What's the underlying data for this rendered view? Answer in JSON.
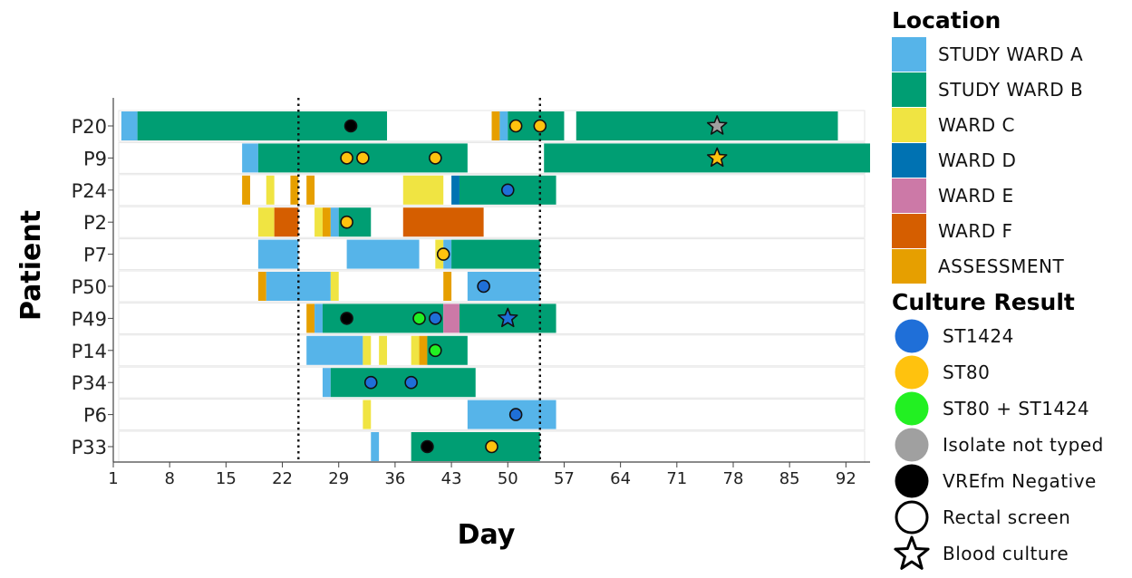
{
  "chart_data": {
    "type": "timeline",
    "xlabel": "Day",
    "ylabel": "Patient",
    "xlim": [
      1,
      95
    ],
    "xticks": [
      1,
      8,
      15,
      22,
      29,
      36,
      43,
      50,
      57,
      64,
      71,
      78,
      85,
      92
    ],
    "vlines": [
      24,
      54
    ],
    "patients": [
      "P20",
      "P9",
      "P24",
      "P2",
      "P7",
      "P50",
      "P49",
      "P14",
      "P34",
      "P6",
      "P33"
    ],
    "location_legend_title": "Location",
    "locations": [
      {
        "name": "STUDY WARD A",
        "color": "#56B4E9"
      },
      {
        "name": "STUDY WARD B",
        "color": "#009E73"
      },
      {
        "name": "WARD C",
        "color": "#F0E442"
      },
      {
        "name": "WARD D",
        "color": "#0072B2"
      },
      {
        "name": "WARD E",
        "color": "#CC79A7"
      },
      {
        "name": "WARD F",
        "color": "#D55E00"
      },
      {
        "name": "ASSESSMENT",
        "color": "#E69F00"
      }
    ],
    "culture_legend_title": "Culture Result",
    "culture_results": [
      {
        "name": "ST1424",
        "color": "#1F6FD8",
        "shape": "circle",
        "outline": false
      },
      {
        "name": "ST80",
        "color": "#FFC20E",
        "shape": "circle",
        "outline": false
      },
      {
        "name": "ST80 + ST1424",
        "color": "#22F022",
        "shape": "circle",
        "outline": false
      },
      {
        "name": "Isolate not typed",
        "color": "#A0A0A0",
        "shape": "circle",
        "outline": false
      },
      {
        "name": "VREfm Negative",
        "color": "#000000",
        "shape": "circle",
        "outline": false
      },
      {
        "name": "Rectal screen",
        "color": "#FFFFFF",
        "shape": "circle",
        "outline": true
      },
      {
        "name": "Blood culture",
        "color": "#FFFFFF",
        "shape": "star",
        "outline": true
      }
    ],
    "stays": [
      {
        "patient": "P20",
        "location": "STUDY WARD A",
        "start": 2,
        "end": 4
      },
      {
        "patient": "P20",
        "location": "STUDY WARD B",
        "start": 4,
        "end": 35
      },
      {
        "patient": "P20",
        "location": "ASSESSMENT",
        "start": 48,
        "end": 49
      },
      {
        "patient": "P20",
        "location": "STUDY WARD A",
        "start": 49,
        "end": 50
      },
      {
        "patient": "P20",
        "location": "STUDY WARD B",
        "start": 50,
        "end": 57
      },
      {
        "patient": "P20",
        "location": "STUDY WARD B",
        "start": 58.5,
        "end": 91
      },
      {
        "patient": "P9",
        "location": "STUDY WARD A",
        "start": 17,
        "end": 19
      },
      {
        "patient": "P9",
        "location": "STUDY WARD B",
        "start": 19,
        "end": 45
      },
      {
        "patient": "P9",
        "location": "STUDY WARD B",
        "start": 54.5,
        "end": 95
      },
      {
        "patient": "P24",
        "location": "ASSESSMENT",
        "start": 17,
        "end": 18
      },
      {
        "patient": "P24",
        "location": "WARD C",
        "start": 20,
        "end": 21
      },
      {
        "patient": "P24",
        "location": "ASSESSMENT",
        "start": 23,
        "end": 24
      },
      {
        "patient": "P24",
        "location": "ASSESSMENT",
        "start": 25,
        "end": 26
      },
      {
        "patient": "P24",
        "location": "WARD C",
        "start": 37,
        "end": 42
      },
      {
        "patient": "P24",
        "location": "WARD D",
        "start": 43,
        "end": 44
      },
      {
        "patient": "P24",
        "location": "STUDY WARD B",
        "start": 44,
        "end": 56
      },
      {
        "patient": "P2",
        "location": "WARD C",
        "start": 19,
        "end": 21
      },
      {
        "patient": "P2",
        "location": "WARD F",
        "start": 21,
        "end": 24
      },
      {
        "patient": "P2",
        "location": "WARD C",
        "start": 26,
        "end": 27
      },
      {
        "patient": "P2",
        "location": "ASSESSMENT",
        "start": 27,
        "end": 28
      },
      {
        "patient": "P2",
        "location": "STUDY WARD A",
        "start": 28,
        "end": 29
      },
      {
        "patient": "P2",
        "location": "STUDY WARD B",
        "start": 29,
        "end": 33
      },
      {
        "patient": "P2",
        "location": "WARD F",
        "start": 37,
        "end": 47
      },
      {
        "patient": "P7",
        "location": "STUDY WARD A",
        "start": 19,
        "end": 24
      },
      {
        "patient": "P7",
        "location": "STUDY WARD A",
        "start": 30,
        "end": 39
      },
      {
        "patient": "P7",
        "location": "WARD C",
        "start": 41,
        "end": 42
      },
      {
        "patient": "P7",
        "location": "STUDY WARD A",
        "start": 42,
        "end": 43
      },
      {
        "patient": "P7",
        "location": "STUDY WARD B",
        "start": 43,
        "end": 54
      },
      {
        "patient": "P50",
        "location": "ASSESSMENT",
        "start": 19,
        "end": 20
      },
      {
        "patient": "P50",
        "location": "STUDY WARD A",
        "start": 20,
        "end": 28
      },
      {
        "patient": "P50",
        "location": "WARD C",
        "start": 28,
        "end": 29
      },
      {
        "patient": "P50",
        "location": "ASSESSMENT",
        "start": 42,
        "end": 43
      },
      {
        "patient": "P50",
        "location": "STUDY WARD A",
        "start": 45,
        "end": 54
      },
      {
        "patient": "P49",
        "location": "ASSESSMENT",
        "start": 25,
        "end": 26
      },
      {
        "patient": "P49",
        "location": "STUDY WARD A",
        "start": 26,
        "end": 27
      },
      {
        "patient": "P49",
        "location": "STUDY WARD B",
        "start": 27,
        "end": 42
      },
      {
        "patient": "P49",
        "location": "WARD E",
        "start": 42,
        "end": 44
      },
      {
        "patient": "P49",
        "location": "STUDY WARD B",
        "start": 44,
        "end": 56
      },
      {
        "patient": "P14",
        "location": "STUDY WARD A",
        "start": 25,
        "end": 32
      },
      {
        "patient": "P14",
        "location": "WARD C",
        "start": 32,
        "end": 33
      },
      {
        "patient": "P14",
        "location": "WARD C",
        "start": 34,
        "end": 35
      },
      {
        "patient": "P14",
        "location": "WARD C",
        "start": 38,
        "end": 39
      },
      {
        "patient": "P14",
        "location": "ASSESSMENT",
        "start": 39,
        "end": 40
      },
      {
        "patient": "P14",
        "location": "STUDY WARD B",
        "start": 40,
        "end": 45
      },
      {
        "patient": "P34",
        "location": "STUDY WARD A",
        "start": 27,
        "end": 28
      },
      {
        "patient": "P34",
        "location": "STUDY WARD B",
        "start": 28,
        "end": 46
      },
      {
        "patient": "P6",
        "location": "WARD C",
        "start": 32,
        "end": 33
      },
      {
        "patient": "P6",
        "location": "STUDY WARD A",
        "start": 45,
        "end": 56
      },
      {
        "patient": "P33",
        "location": "STUDY WARD A",
        "start": 33,
        "end": 34
      },
      {
        "patient": "P33",
        "location": "STUDY WARD B",
        "start": 38,
        "end": 54
      }
    ],
    "cultures": [
      {
        "patient": "P20",
        "day": 30.5,
        "result": "VREfm Negative",
        "type": "Rectal screen"
      },
      {
        "patient": "P20",
        "day": 51,
        "result": "ST80",
        "type": "Rectal screen"
      },
      {
        "patient": "P20",
        "day": 54,
        "result": "ST80",
        "type": "Rectal screen"
      },
      {
        "patient": "P20",
        "day": 76,
        "result": "Isolate not typed",
        "type": "Blood culture"
      },
      {
        "patient": "P9",
        "day": 30,
        "result": "ST80",
        "type": "Rectal screen"
      },
      {
        "patient": "P9",
        "day": 32,
        "result": "ST80",
        "type": "Rectal screen"
      },
      {
        "patient": "P9",
        "day": 41,
        "result": "ST80",
        "type": "Rectal screen"
      },
      {
        "patient": "P9",
        "day": 76,
        "result": "ST80",
        "type": "Blood culture"
      },
      {
        "patient": "P24",
        "day": 50,
        "result": "ST1424",
        "type": "Rectal screen"
      },
      {
        "patient": "P2",
        "day": 30,
        "result": "ST80",
        "type": "Rectal screen"
      },
      {
        "patient": "P7",
        "day": 42,
        "result": "ST80",
        "type": "Rectal screen"
      },
      {
        "patient": "P50",
        "day": 47,
        "result": "ST1424",
        "type": "Rectal screen"
      },
      {
        "patient": "P49",
        "day": 30,
        "result": "VREfm Negative",
        "type": "Rectal screen"
      },
      {
        "patient": "P49",
        "day": 39,
        "result": "ST80 + ST1424",
        "type": "Rectal screen"
      },
      {
        "patient": "P49",
        "day": 41,
        "result": "ST1424",
        "type": "Rectal screen"
      },
      {
        "patient": "P49",
        "day": 50,
        "result": "ST1424",
        "type": "Blood culture"
      },
      {
        "patient": "P14",
        "day": 41,
        "result": "ST80 + ST1424",
        "type": "Rectal screen"
      },
      {
        "patient": "P34",
        "day": 33,
        "result": "ST1424",
        "type": "Rectal screen"
      },
      {
        "patient": "P34",
        "day": 38,
        "result": "ST1424",
        "type": "Rectal screen"
      },
      {
        "patient": "P6",
        "day": 51,
        "result": "ST1424",
        "type": "Rectal screen"
      },
      {
        "patient": "P33",
        "day": 40,
        "result": "VREfm Negative",
        "type": "Rectal screen"
      },
      {
        "patient": "P33",
        "day": 48,
        "result": "ST80",
        "type": "Rectal screen"
      }
    ]
  }
}
